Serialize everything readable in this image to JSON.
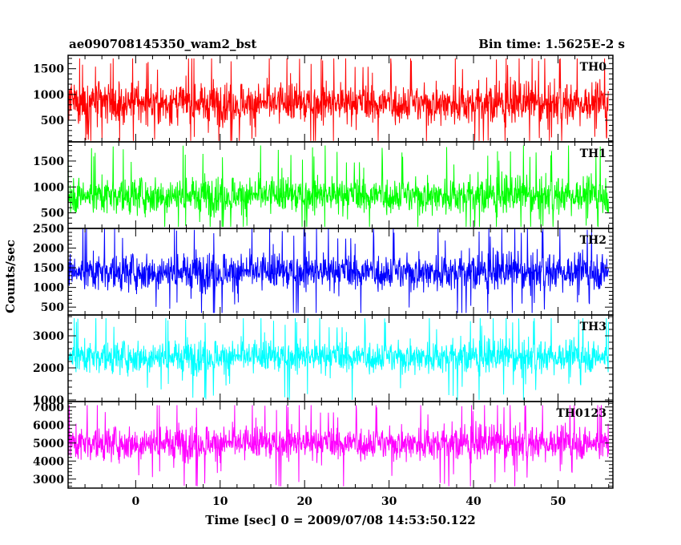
{
  "chart_data": {
    "type": "line",
    "title": "ae090708145350_wam2_bst",
    "subtitle": "Bin time: 1.5625E-2 s",
    "xlabel": "Time [sec] 0 = 2009/07/08 14:53:50.122",
    "ylabel": "Counts/sec",
    "xlim": [
      -8,
      56.5
    ],
    "x_ticks": [
      0,
      10,
      20,
      30,
      40,
      50
    ],
    "x_tick_labels": [
      "0",
      "10",
      "20",
      "30",
      "40",
      "50"
    ],
    "x_minor_step": 2,
    "data_x_range": [
      -8,
      56
    ],
    "bin_time": 0.015625,
    "grid": false,
    "panels": [
      {
        "name": "TH0",
        "color": "#ff0000",
        "ylim": [
          80,
          1760
        ],
        "y_ticks": [
          500,
          1000,
          1500
        ],
        "y_tick_labels": [
          "500",
          "1000",
          "1500"
        ],
        "y_minor_step": 100,
        "typical_range": [
          350,
          1350
        ],
        "mean": 830,
        "min": 100,
        "max": 1700
      },
      {
        "name": "TH1",
        "color": "#00ff00",
        "ylim": [
          200,
          1870
        ],
        "y_ticks": [
          500,
          1000,
          1500
        ],
        "y_tick_labels": [
          "500",
          "1000",
          "1500"
        ],
        "y_minor_step": 100,
        "typical_range": [
          400,
          1300
        ],
        "mean": 840,
        "min": 230,
        "max": 1800
      },
      {
        "name": "TH2",
        "color": "#0000ff",
        "ylim": [
          300,
          2500
        ],
        "y_ticks": [
          500,
          1000,
          1500,
          2000,
          2500
        ],
        "y_tick_labels": [
          "500",
          "1000",
          "1500",
          "2000",
          "2500"
        ],
        "y_minor_step": 100,
        "typical_range": [
          800,
          2000
        ],
        "mean": 1400,
        "min": 350,
        "max": 2490
      },
      {
        "name": "TH3",
        "color": "#00ffff",
        "ylim": [
          950,
          3650
        ],
        "y_ticks": [
          1000,
          2000,
          3000
        ],
        "y_tick_labels": [
          "1000",
          "2000",
          "3000"
        ],
        "y_minor_step": 200,
        "typical_range": [
          1700,
          3000
        ],
        "mean": 2350,
        "min": 1000,
        "max": 3550
      },
      {
        "name": "TH0123",
        "color": "#ff00ff",
        "ylim": [
          2500,
          7300
        ],
        "y_ticks": [
          3000,
          4000,
          5000,
          6000,
          7000
        ],
        "y_tick_labels": [
          "3000",
          "4000",
          "5000",
          "6000",
          "7000"
        ],
        "y_minor_step": 200,
        "typical_range": [
          3800,
          6200
        ],
        "mean": 5000,
        "min": 2600,
        "max": 7100
      }
    ]
  }
}
